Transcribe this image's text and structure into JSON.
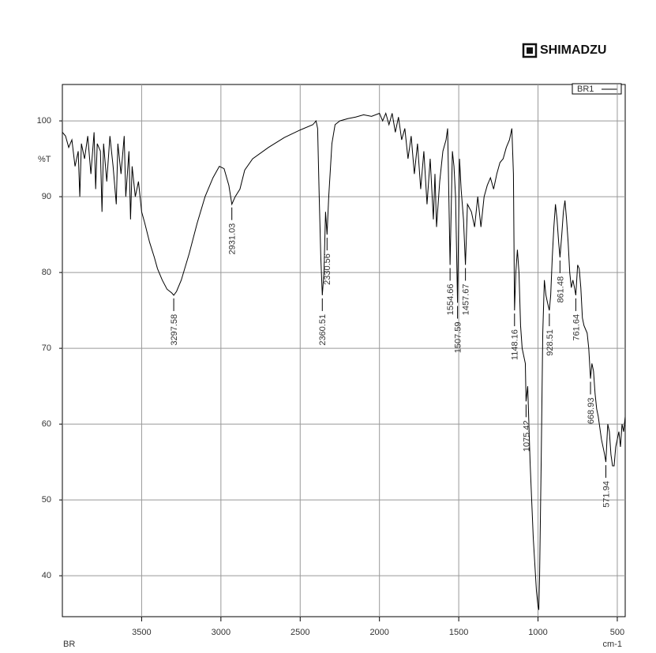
{
  "chart_data": {
    "type": "line",
    "brand": "SHIMADZU",
    "ylabel": "%T",
    "xlabel": "cm-1",
    "sample": "BR",
    "xlim": [
      4000,
      450
    ],
    "ylim": [
      34.6,
      104.8
    ],
    "reverse_x": true,
    "grid": true,
    "xticks": [
      3500,
      3000,
      2500,
      2000,
      1500,
      1000,
      500
    ],
    "yticks": [
      40,
      50,
      60,
      70,
      80,
      90,
      100
    ],
    "x": [
      4000,
      3980,
      3960,
      3940,
      3920,
      3900,
      3890,
      3880,
      3860,
      3840,
      3820,
      3800,
      3790,
      3780,
      3760,
      3750,
      3740,
      3720,
      3700,
      3680,
      3660,
      3650,
      3630,
      3610,
      3600,
      3580,
      3570,
      3560,
      3540,
      3520,
      3500,
      3480,
      3450,
      3420,
      3400,
      3370,
      3340,
      3310,
      3297.58,
      3280,
      3250,
      3200,
      3150,
      3100,
      3050,
      3010,
      2980,
      2950,
      2931.03,
      2910,
      2880,
      2850,
      2800,
      2700,
      2600,
      2500,
      2420,
      2400,
      2390,
      2380,
      2370,
      2360.51,
      2350,
      2340,
      2330.56,
      2320,
      2300,
      2280,
      2250,
      2200,
      2150,
      2100,
      2050,
      2000,
      1980,
      1960,
      1940,
      1920,
      1900,
      1880,
      1860,
      1840,
      1820,
      1800,
      1780,
      1760,
      1740,
      1720,
      1700,
      1680,
      1660,
      1650,
      1640,
      1620,
      1600,
      1580,
      1570,
      1554.66,
      1540,
      1530,
      1520,
      1507.59,
      1495,
      1485,
      1470,
      1457.67,
      1445,
      1420,
      1400,
      1380,
      1360,
      1340,
      1320,
      1300,
      1280,
      1260,
      1240,
      1220,
      1200,
      1180,
      1165,
      1155,
      1148.16,
      1140,
      1130,
      1120,
      1110,
      1100,
      1090,
      1080,
      1075.42,
      1065,
      1050,
      1030,
      1010,
      1000,
      995,
      990,
      980,
      970,
      960,
      950,
      940,
      928.51,
      920,
      910,
      900,
      890,
      880,
      870,
      861.48,
      850,
      840,
      830,
      820,
      810,
      800,
      790,
      780,
      770,
      761.64,
      750,
      740,
      730,
      720,
      710,
      700,
      690,
      680,
      668.93,
      660,
      650,
      640,
      630,
      620,
      610,
      600,
      590,
      580,
      571.94,
      565,
      560,
      550,
      540,
      530,
      520,
      510,
      500,
      490,
      480,
      470,
      460,
      450
    ],
    "series": [
      {
        "name": "BR1",
        "color": "#000000",
        "values": [
          98.5,
          98,
          96.5,
          97.5,
          94,
          96,
          90,
          97,
          95,
          98,
          93,
          98.5,
          91,
          97,
          96,
          88,
          97,
          92,
          98,
          94,
          89,
          97,
          93,
          98,
          90,
          96,
          87,
          94,
          90,
          92,
          88,
          86.5,
          84,
          82,
          80.5,
          79,
          77.8,
          77.3,
          77,
          77.5,
          79,
          82.5,
          86.5,
          90,
          92.5,
          94,
          93.7,
          91.5,
          89,
          90,
          91,
          93.5,
          95,
          96.5,
          97.8,
          98.8,
          99.5,
          100,
          99,
          90,
          82,
          77,
          80,
          88,
          85,
          90,
          97,
          99.5,
          100,
          100.3,
          100.5,
          100.8,
          100.6,
          101,
          100,
          101,
          99.5,
          101,
          98.5,
          100.5,
          97.5,
          99,
          95,
          98,
          93,
          97,
          91,
          96,
          89,
          95,
          87,
          93,
          86,
          92,
          96,
          97.5,
          99,
          81,
          96,
          94,
          90,
          76,
          95,
          91,
          87,
          81,
          89,
          88,
          86,
          90,
          86,
          90,
          91.5,
          92.5,
          91,
          93,
          94.5,
          95,
          96.5,
          97.5,
          99,
          93,
          75,
          80,
          83,
          80,
          73,
          70,
          69,
          68,
          63,
          65,
          55,
          45,
          38,
          36,
          35.5,
          40,
          55,
          72,
          79,
          77,
          76,
          75,
          77,
          82,
          86,
          89,
          87,
          84,
          82,
          85,
          88,
          89.5,
          87,
          84,
          80,
          78,
          79,
          78,
          77,
          81,
          80.5,
          78,
          74,
          73,
          72.5,
          72,
          70,
          66,
          68,
          67,
          64,
          62,
          61,
          59.5,
          58,
          57,
          56,
          55,
          58,
          60,
          59,
          56,
          54.5,
          54.5,
          57,
          58,
          59,
          57,
          60,
          59,
          61
        ]
      }
    ],
    "peaks": [
      {
        "x": 3297.58,
        "y": 77,
        "label": "3297.58"
      },
      {
        "x": 2931.03,
        "y": 89,
        "label": "2931.03"
      },
      {
        "x": 2360.51,
        "y": 77,
        "label": "2360.51"
      },
      {
        "x": 2330.56,
        "y": 85,
        "label": "2330.56"
      },
      {
        "x": 1554.66,
        "y": 81,
        "label": "1554.66"
      },
      {
        "x": 1507.59,
        "y": 76,
        "label": "1507.59"
      },
      {
        "x": 1457.67,
        "y": 81,
        "label": "1457.67"
      },
      {
        "x": 1148.16,
        "y": 75,
        "label": "1148.16"
      },
      {
        "x": 1075.42,
        "y": 63,
        "label": "1075.42"
      },
      {
        "x": 928.51,
        "y": 75,
        "label": "928.51"
      },
      {
        "x": 861.48,
        "y": 82,
        "label": "861.48"
      },
      {
        "x": 761.64,
        "y": 77,
        "label": "761.64"
      },
      {
        "x": 668.93,
        "y": 66,
        "label": "668.93"
      },
      {
        "x": 571.94,
        "y": 55,
        "label": "571.94"
      }
    ]
  }
}
